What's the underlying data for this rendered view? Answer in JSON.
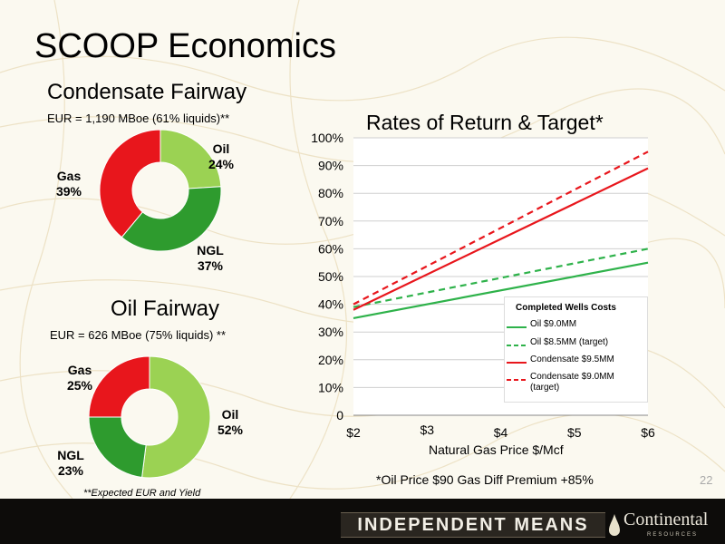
{
  "slide": {
    "title": "SCOOP Economics",
    "page_number": "22",
    "footer_tagline": "INDEPENDENT MEANS",
    "brand": "Continental",
    "brand_sub": "RESOURCES",
    "footnote": "**Expected EUR and Yield"
  },
  "chart_data": [
    {
      "type": "pie",
      "title": "Condensate Fairway",
      "subtitle": "EUR = 1,190 MBoe (61% liquids)**",
      "labels": [
        "Oil",
        "NGL",
        "Gas"
      ],
      "values": [
        24,
        37,
        39
      ],
      "value_labels": [
        "24%",
        "37%",
        "39%"
      ],
      "colors": [
        "#9bd253",
        "#2e9b2e",
        "#e8161c"
      ]
    },
    {
      "type": "pie",
      "title": "Oil Fairway",
      "subtitle": "EUR = 626 MBoe (75% liquids) **",
      "labels": [
        "Oil",
        "NGL",
        "Gas"
      ],
      "values": [
        52,
        23,
        25
      ],
      "value_labels": [
        "52%",
        "23%",
        "25%"
      ],
      "colors": [
        "#9bd253",
        "#2e9b2e",
        "#e8161c"
      ]
    },
    {
      "type": "line",
      "title": "Rates of Return & Target*",
      "xlabel": "Natural Gas Price $/Mcf",
      "ylabel": "",
      "x": [
        2,
        6
      ],
      "x_ticks": [
        "$2",
        "$3",
        "$4",
        "$5",
        "$6"
      ],
      "y_ticks": [
        "0",
        "10%",
        "20%",
        "30%",
        "40%",
        "50%",
        "60%",
        "70%",
        "80%",
        "90%",
        "100%"
      ],
      "ylim": [
        0,
        100
      ],
      "grid": true,
      "legend_title": "Completed Wells Costs",
      "legend_position": "bottom-right",
      "footnote": "*Oil Price $90   Gas Diff Premium +85%",
      "series": [
        {
          "name": "Oil $9.0MM",
          "values": [
            35,
            55
          ],
          "color": "#2eb24a",
          "dash": false
        },
        {
          "name": "Oil $8.5MM (target)",
          "values": [
            39,
            60
          ],
          "color": "#2eb24a",
          "dash": true
        },
        {
          "name": "Condensate $9.5MM",
          "values": [
            38,
            89
          ],
          "color": "#e8161c",
          "dash": false
        },
        {
          "name": "Condensate $9.0MM (target)",
          "values": [
            40,
            95
          ],
          "color": "#e8161c",
          "dash": true
        }
      ]
    }
  ]
}
